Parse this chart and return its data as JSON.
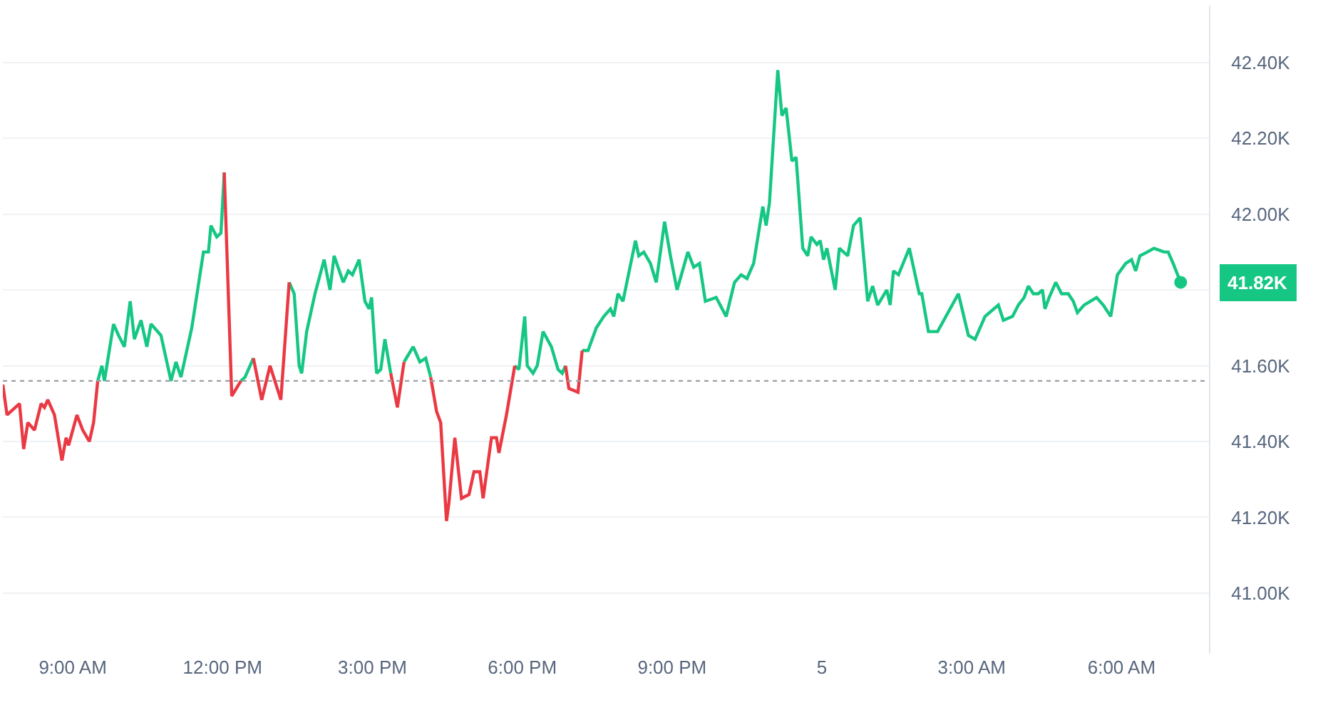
{
  "chart_data": {
    "type": "line",
    "xlim": [
      "--12-04T07:36",
      "--12-05T07:45"
    ],
    "ylim": [
      40.84,
      42.55
    ],
    "xticks": [
      {
        "value": "--12-04T09:00",
        "label": "9:00 AM"
      },
      {
        "value": "--12-04T12:00",
        "label": "12:00 PM"
      },
      {
        "value": "--12-04T15:00",
        "label": "3:00 PM"
      },
      {
        "value": "--12-04T18:00",
        "label": "6:00 PM"
      },
      {
        "value": "--12-04T21:00",
        "label": "9:00 PM"
      },
      {
        "value": "--12-05T00:00",
        "label": "5"
      },
      {
        "value": "--12-05T03:00",
        "label": "3:00 AM"
      },
      {
        "value": "--12-05T06:00",
        "label": "6:00 AM"
      }
    ],
    "yticks": [
      {
        "value": 41.0,
        "label": "41.00K"
      },
      {
        "value": 41.2,
        "label": "41.20K"
      },
      {
        "value": 41.4,
        "label": "41.40K"
      },
      {
        "value": 41.6,
        "label": "41.60K"
      },
      {
        "value": 41.8,
        "label": null
      },
      {
        "value": 42.0,
        "label": "42.00K"
      },
      {
        "value": 42.2,
        "label": "42.20K"
      },
      {
        "value": 42.4,
        "label": "42.40K"
      }
    ],
    "grid": "y",
    "marker": "none",
    "line_style": "solid",
    "x": [
      "--12-04T07:36",
      "--12-04T07:41",
      "--12-04T07:56",
      "--12-04T08:01",
      "--12-04T08:06",
      "--12-04T08:14",
      "--12-04T08:22",
      "--12-04T08:26",
      "--12-04T08:30",
      "--12-04T08:38",
      "--12-04T08:47",
      "--12-04T08:52",
      "--12-04T08:55",
      "--12-04T09:05",
      "--12-04T09:12",
      "--12-04T09:20",
      "--12-04T09:25",
      "--12-04T09:30",
      "--12-04T09:35",
      "--12-04T09:38",
      "--12-04T09:49",
      "--12-04T09:55",
      "--12-04T10:02",
      "--12-04T10:09",
      "--12-04T10:14",
      "--12-04T10:22",
      "--12-04T10:29",
      "--12-04T10:34",
      "--12-04T10:46",
      "--12-04T10:58",
      "--12-04T11:04",
      "--12-04T11:10",
      "--12-04T11:23",
      "--12-04T11:37",
      "--12-04T11:43",
      "--12-04T11:46",
      "--12-04T11:53",
      "--12-04T11:58",
      "--12-04T12:02",
      "--12-04T12:11",
      "--12-04T12:22",
      "--12-04T12:27",
      "--12-04T12:37",
      "--12-04T12:47",
      "--12-04T12:57",
      "--12-04T13:10",
      "--12-04T13:20",
      "--12-04T13:26",
      "--12-04T13:32",
      "--12-04T13:35",
      "--12-04T13:41",
      "--12-04T13:51",
      "--12-04T14:02",
      "--12-04T14:09",
      "--12-04T14:14",
      "--12-04T14:25",
      "--12-04T14:31",
      "--12-04T14:36",
      "--12-04T14:44",
      "--12-04T14:51",
      "--12-04T14:56",
      "--12-04T14:59",
      "--12-04T15:05",
      "--12-04T15:10",
      "--12-04T15:15",
      "--12-04T15:22",
      "--12-04T15:30",
      "--12-04T15:38",
      "--12-04T15:49",
      "--12-04T15:57",
      "--12-04T16:04",
      "--12-04T16:10",
      "--12-04T16:17",
      "--12-04T16:22",
      "--12-04T16:29",
      "--12-04T16:32",
      "--12-04T16:39",
      "--12-04T16:47",
      "--12-04T16:56",
      "--12-04T17:02",
      "--12-04T17:09",
      "--12-04T17:13",
      "--12-04T17:23",
      "--12-04T17:29",
      "--12-04T17:32",
      "--12-04T17:41",
      "--12-04T17:51",
      "--12-04T17:56",
      "--12-04T18:03",
      "--12-04T18:06",
      "--12-04T18:13",
      "--12-04T18:18",
      "--12-04T18:25",
      "--12-04T18:35",
      "--12-04T18:43",
      "--12-04T18:48",
      "--12-04T18:52",
      "--12-04T18:56",
      "--12-04T19:07",
      "--12-04T19:12",
      "--12-04T19:19",
      "--12-04T19:29",
      "--12-04T19:38",
      "--12-04T19:46",
      "--12-04T19:50",
      "--12-04T19:55",
      "--12-04T20:01",
      "--12-04T20:16",
      "--12-04T20:20",
      "--12-04T20:26",
      "--12-04T20:34",
      "--12-04T20:41",
      "--12-04T20:51",
      "--12-04T20:58",
      "--12-04T21:06",
      "--12-04T21:19",
      "--12-04T21:26",
      "--12-04T21:33",
      "--12-04T21:40",
      "--12-04T21:53",
      "--12-04T22:05",
      "--12-04T22:15",
      "--12-04T22:23",
      "--12-04T22:30",
      "--12-04T22:38",
      "--12-04T22:49",
      "--12-04T22:53",
      "--12-04T22:57",
      "--12-04T23:07",
      "--12-04T23:12",
      "--12-04T23:17",
      "--12-04T23:24",
      "--12-04T23:29",
      "--12-04T23:37",
      "--12-04T23:43",
      "--12-04T23:47",
      "--12-04T23:54",
      "--12-04T23:58",
      "--12-05T00:02",
      "--12-05T00:06",
      "--12-05T00:16",
      "--12-05T00:21",
      "--12-05T00:31",
      "--12-05T00:38",
      "--12-05T00:46",
      "--12-05T00:55",
      "--12-05T01:01",
      "--12-05T01:07",
      "--12-05T01:18",
      "--12-05T01:22",
      "--12-05T01:26",
      "--12-05T01:32",
      "--12-05T01:45",
      "--12-05T01:57",
      "--12-05T02:00",
      "--12-05T02:08",
      "--12-05T02:19",
      "--12-05T02:44",
      "--12-05T02:56",
      "--12-05T03:04",
      "--12-05T03:16",
      "--12-05T03:32",
      "--12-05T03:38",
      "--12-05T03:49",
      "--12-05T03:56",
      "--12-05T04:03",
      "--12-05T04:08",
      "--12-05T04:14",
      "--12-05T04:20",
      "--12-05T04:25",
      "--12-05T04:28",
      "--12-05T04:33",
      "--12-05T04:41",
      "--12-05T04:48",
      "--12-05T04:56",
      "--12-05T05:02",
      "--12-05T05:07",
      "--12-05T05:15",
      "--12-05T05:30",
      "--12-05T05:38",
      "--12-05T05:47",
      "--12-05T05:55",
      "--12-05T06:05",
      "--12-05T06:12",
      "--12-05T06:17",
      "--12-05T06:22",
      "--12-05T06:31",
      "--12-05T06:39",
      "--12-05T06:51",
      "--12-05T06:56",
      "--12-05T07:02",
      "--12-05T07:11"
    ],
    "series": [
      {
        "color": "#16c784",
        "values": [
          null,
          null,
          null,
          null,
          null,
          null,
          null,
          null,
          null,
          null,
          null,
          null,
          null,
          null,
          null,
          null,
          null,
          41.56,
          41.6,
          41.56,
          41.71,
          41.68,
          41.65,
          41.77,
          41.67,
          41.72,
          41.65,
          41.71,
          41.68,
          41.56,
          41.61,
          41.57,
          41.7,
          41.9,
          41.9,
          41.97,
          41.94,
          41.95,
          42.11,
          null,
          41.56,
          41.57,
          41.62,
          null,
          null,
          null,
          41.82,
          41.79,
          41.6,
          41.58,
          41.69,
          41.79,
          41.88,
          41.8,
          41.89,
          41.82,
          41.85,
          41.84,
          41.88,
          41.77,
          41.75,
          41.78,
          41.58,
          41.59,
          41.67,
          41.58,
          null,
          41.61,
          41.65,
          41.61,
          41.62,
          41.57,
          null,
          null,
          null,
          null,
          null,
          null,
          null,
          null,
          null,
          null,
          null,
          null,
          null,
          null,
          41.6,
          41.59,
          41.73,
          41.6,
          41.58,
          41.6,
          41.69,
          41.65,
          41.59,
          41.58,
          41.6,
          null,
          null,
          41.64,
          41.64,
          41.7,
          41.73,
          41.75,
          41.73,
          41.79,
          41.77,
          41.93,
          41.89,
          41.9,
          41.87,
          41.82,
          41.98,
          41.89,
          41.8,
          41.9,
          41.86,
          41.87,
          41.77,
          41.78,
          41.73,
          41.82,
          41.84,
          41.83,
          41.87,
          42.02,
          41.97,
          42.03,
          42.38,
          42.26,
          42.28,
          42.14,
          42.15,
          41.91,
          41.89,
          41.94,
          41.92,
          41.93,
          41.88,
          41.91,
          41.8,
          41.91,
          41.89,
          41.97,
          41.99,
          41.77,
          41.81,
          41.76,
          41.8,
          41.76,
          41.85,
          41.84,
          41.91,
          41.79,
          41.79,
          41.69,
          41.69,
          41.79,
          41.68,
          41.67,
          41.73,
          41.76,
          41.72,
          41.73,
          41.76,
          41.78,
          41.81,
          41.79,
          41.79,
          41.8,
          41.75,
          41.78,
          41.82,
          41.79,
          41.79,
          41.77,
          41.74,
          41.76,
          41.78,
          41.76,
          41.73,
          41.84,
          41.87,
          41.88,
          41.85,
          41.89,
          41.9,
          41.91,
          41.9,
          41.9,
          41.87,
          41.82
        ]
      },
      {
        "color": "#ea3943",
        "values": [
          41.55,
          41.47,
          41.5,
          41.38,
          41.45,
          41.43,
          41.5,
          41.49,
          41.51,
          41.47,
          41.35,
          41.41,
          41.39,
          41.47,
          41.43,
          41.4,
          41.45,
          41.56,
          null,
          null,
          null,
          null,
          null,
          null,
          null,
          null,
          null,
          null,
          null,
          null,
          null,
          null,
          null,
          null,
          null,
          null,
          null,
          null,
          42.11,
          41.52,
          41.56,
          null,
          41.62,
          41.51,
          41.6,
          41.51,
          41.82,
          null,
          null,
          null,
          null,
          null,
          null,
          null,
          null,
          null,
          null,
          null,
          null,
          null,
          null,
          null,
          null,
          null,
          null,
          41.58,
          41.49,
          41.61,
          null,
          null,
          null,
          41.57,
          41.48,
          41.45,
          41.19,
          41.24,
          41.41,
          41.25,
          41.26,
          41.32,
          41.32,
          41.25,
          41.41,
          41.41,
          41.37,
          41.47,
          41.6,
          null,
          null,
          null,
          null,
          null,
          null,
          null,
          null,
          null,
          41.6,
          41.54,
          41.53,
          41.64,
          null,
          null,
          null,
          null,
          null,
          null,
          null,
          null,
          null,
          null,
          null,
          null,
          null,
          null,
          null,
          null,
          null,
          null,
          null,
          null,
          null,
          null,
          null,
          null,
          null,
          null,
          null,
          null,
          null,
          null,
          null,
          null,
          null,
          null,
          null,
          null,
          null,
          null,
          null,
          null,
          null,
          null,
          null,
          null,
          null,
          null,
          null,
          null,
          null,
          null,
          null,
          null,
          null,
          null,
          null,
          null,
          null,
          null,
          null,
          null,
          null,
          null,
          null,
          null,
          null,
          null,
          null,
          null,
          null,
          null,
          null,
          null,
          null,
          null,
          null,
          null,
          null,
          null,
          null,
          null,
          null,
          null,
          null,
          null,
          null,
          null,
          null,
          null,
          null,
          null,
          null,
          null
        ]
      }
    ],
    "ref_lines": [
      {
        "axis": "y",
        "value": 41.56,
        "color": "#9aa0a6",
        "line_style": "dotted"
      }
    ],
    "annotations": [
      {
        "text": "41.82K",
        "x": "--12-05T07:11",
        "y": 41.82
      }
    ]
  }
}
